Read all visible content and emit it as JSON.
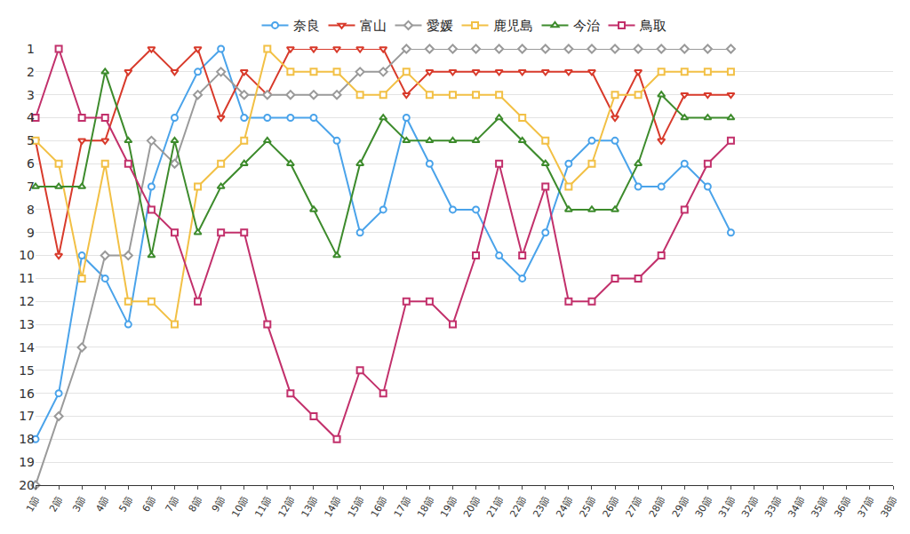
{
  "chart_data": {
    "type": "line",
    "categories": [
      "1節",
      "2節",
      "3節",
      "4節",
      "5節",
      "6節",
      "7節",
      "8節",
      "9節",
      "10節",
      "11節",
      "12節",
      "13節",
      "14節",
      "15節",
      "16節",
      "17節",
      "18節",
      "19節",
      "20節",
      "21節",
      "22節",
      "23節",
      "24節",
      "25節",
      "26節",
      "27節",
      "28節",
      "29節",
      "30節",
      "31節",
      "32節",
      "33節",
      "34節",
      "35節",
      "36節",
      "37節",
      "38節"
    ],
    "series": [
      {
        "name": "奈良",
        "color": "#4aa3ea",
        "marker": "circle",
        "values": [
          18,
          16,
          10,
          11,
          13,
          7,
          4,
          2,
          1,
          4,
          4,
          4,
          4,
          5,
          9,
          8,
          4,
          6,
          8,
          8,
          10,
          11,
          9,
          6,
          5,
          5,
          7,
          7,
          6,
          7,
          9,
          null,
          null,
          null,
          null,
          null,
          null,
          null
        ]
      },
      {
        "name": "富山",
        "color": "#d83a2b",
        "marker": "triangle-down",
        "values": [
          5,
          10,
          5,
          5,
          2,
          1,
          2,
          1,
          4,
          2,
          3,
          1,
          1,
          1,
          1,
          1,
          3,
          2,
          2,
          2,
          2,
          2,
          2,
          2,
          2,
          4,
          2,
          5,
          3,
          3,
          3,
          null,
          null,
          null,
          null,
          null,
          null,
          null
        ]
      },
      {
        "name": "愛媛",
        "color": "#9a9a9a",
        "marker": "diamond",
        "values": [
          20,
          17,
          14,
          10,
          10,
          5,
          6,
          3,
          2,
          3,
          3,
          3,
          3,
          3,
          2,
          2,
          1,
          1,
          1,
          1,
          1,
          1,
          1,
          1,
          1,
          1,
          1,
          1,
          1,
          1,
          1,
          null,
          null,
          null,
          null,
          null,
          null,
          null
        ]
      },
      {
        "name": "鹿児島",
        "color": "#f2c045",
        "marker": "square",
        "values": [
          5,
          6,
          11,
          6,
          12,
          12,
          13,
          7,
          6,
          5,
          1,
          2,
          2,
          2,
          3,
          3,
          2,
          3,
          3,
          3,
          3,
          4,
          5,
          7,
          6,
          3,
          3,
          2,
          2,
          2,
          2,
          null,
          null,
          null,
          null,
          null,
          null,
          null
        ]
      },
      {
        "name": "今治",
        "color": "#3d8b2c",
        "marker": "triangle-up",
        "values": [
          7,
          7,
          7,
          2,
          5,
          10,
          5,
          9,
          7,
          6,
          5,
          6,
          8,
          10,
          6,
          4,
          5,
          5,
          5,
          5,
          4,
          5,
          6,
          8,
          8,
          8,
          6,
          3,
          4,
          4,
          4,
          null,
          null,
          null,
          null,
          null,
          null,
          null
        ]
      },
      {
        "name": "鳥取",
        "color": "#c2306b",
        "marker": "square",
        "values": [
          4,
          1,
          4,
          4,
          6,
          8,
          9,
          12,
          9,
          9,
          13,
          16,
          17,
          18,
          15,
          16,
          12,
          12,
          13,
          10,
          6,
          10,
          7,
          12,
          12,
          11,
          11,
          10,
          8,
          6,
          5,
          null,
          null,
          null,
          null,
          null,
          null,
          null
        ]
      }
    ],
    "ylim": [
      20,
      1
    ],
    "yticks": [
      1,
      2,
      3,
      4,
      5,
      6,
      7,
      8,
      9,
      10,
      11,
      12,
      13,
      14,
      15,
      16,
      17,
      18,
      19,
      20
    ],
    "grid": true,
    "legend": "top"
  }
}
